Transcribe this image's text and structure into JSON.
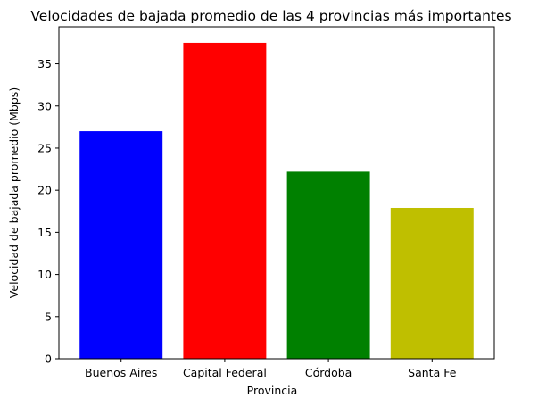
{
  "chart_data": {
    "type": "bar",
    "title": "Velocidades de bajada promedio de las 4 provincias más importantes",
    "xlabel": "Provincia",
    "ylabel": "Velocidad de bajada promedio (Mbps)",
    "categories": [
      "Buenos Aires",
      "Capital Federal",
      "Córdoba",
      "Santa Fe"
    ],
    "values": [
      27.0,
      37.5,
      22.2,
      17.9
    ],
    "colors": [
      "#0000ff",
      "#ff0000",
      "#008000",
      "#bfbf00"
    ],
    "ylim": [
      0,
      39.4
    ],
    "yticks": [
      0,
      5,
      10,
      15,
      20,
      25,
      30,
      35
    ],
    "grid": false,
    "legend": "none"
  }
}
